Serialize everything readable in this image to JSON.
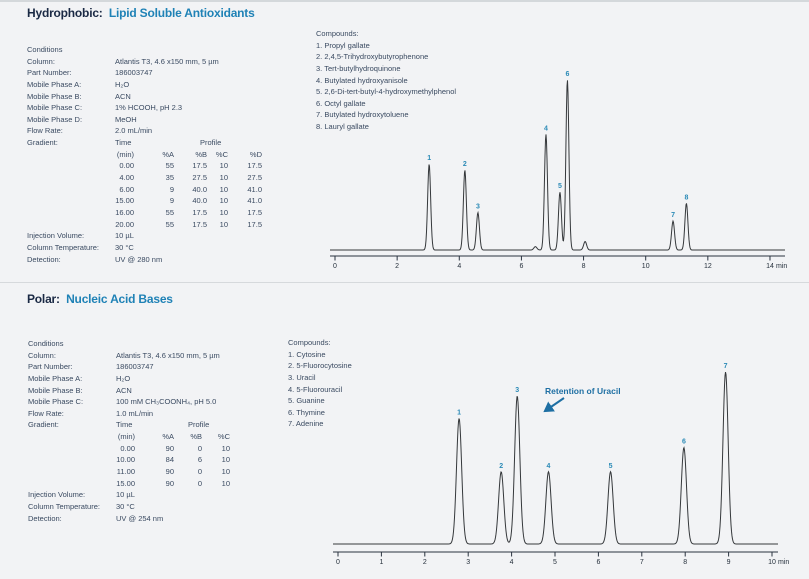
{
  "page": {
    "background": "#f2f3f5"
  },
  "colors": {
    "accent_blue": "#1f82b6",
    "title_dark": "#1a2944",
    "body_text": "#3a4a61",
    "peak_label_teal": "#2b8ab6",
    "annotation_blue": "#1e6fa3",
    "trace": "#35383b",
    "divider": "#d6d9dc"
  },
  "sections": [
    {
      "title_prefix": "Hydrophobic:",
      "title_accent": "Lipid Soluble Antioxidants",
      "conditions_label": "Conditions",
      "conditions": [
        [
          "Column:",
          "Atlantis T3, 4.6 x150 mm, 5 µm"
        ],
        [
          "Part Number:",
          "186003747"
        ],
        [
          "Mobile Phase A:",
          "H₂O"
        ],
        [
          "Mobile Phase B:",
          "ACN"
        ],
        [
          "Mobile Phase C:",
          "1% HCOOH, pH 2.3"
        ],
        [
          "Mobile Phase D:",
          "MeOH"
        ],
        [
          "Flow Rate:",
          "2.0 mL/min"
        ]
      ],
      "gradient_label": "Gradient:",
      "gradient": {
        "time_header": "Time",
        "profile_header": "Profile",
        "col_headers": [
          "(min)",
          "%A",
          "%B",
          "%C",
          "%D"
        ],
        "rows": [
          [
            "0.00",
            "55",
            "17.5",
            "10",
            "17.5"
          ],
          [
            "4.00",
            "35",
            "27.5",
            "10",
            "27.5"
          ],
          [
            "6.00",
            "9",
            "40.0",
            "10",
            "41.0"
          ],
          [
            "15.00",
            "9",
            "40.0",
            "10",
            "41.0"
          ],
          [
            "16.00",
            "55",
            "17.5",
            "10",
            "17.5"
          ],
          [
            "20.00",
            "55",
            "17.5",
            "10",
            "17.5"
          ]
        ]
      },
      "footer_conditions": [
        [
          "Injection Volume:",
          "10 µL"
        ],
        [
          "Column Temperature:",
          "30 °C"
        ],
        [
          "Detection:",
          "UV @ 280 nm"
        ]
      ],
      "compounds_label": "Compounds:",
      "compounds": [
        "1. Propyl gallate",
        "2. 2,4,5-Trihydroxybutyrophenone",
        "3. Tert-butylhydroquinone",
        "4. Butylated hydroxyanisole",
        "5. 2,6-Di-tert-butyl-4-hydroxymethylphenol",
        "6. Octyl gallate",
        "7. Butylated hydroxytoluene",
        "8. Lauryl gallate"
      ]
    },
    {
      "title_prefix": "Polar:",
      "title_accent": "Nucleic Acid Bases",
      "conditions_label": "Conditions",
      "conditions": [
        [
          "Column:",
          "Atlantis T3, 4.6 x150 mm, 5 µm"
        ],
        [
          "Part Number:",
          "186003747"
        ],
        [
          "Mobile Phase A:",
          "H₂O"
        ],
        [
          "Mobile Phase B:",
          "ACN"
        ],
        [
          "Mobile Phase C:",
          "100 mM CH₃COONH₄, pH 5.0"
        ],
        [
          "Flow Rate:",
          "1.0 mL/min"
        ]
      ],
      "gradient_label": "Gradient:",
      "gradient": {
        "time_header": "Time",
        "profile_header": "Profile",
        "col_headers": [
          "(min)",
          "%A",
          "%B",
          "%C"
        ],
        "rows": [
          [
            "0.00",
            "90",
            "0",
            "10"
          ],
          [
            "10.00",
            "84",
            "6",
            "10"
          ],
          [
            "11.00",
            "90",
            "0",
            "10"
          ],
          [
            "15.00",
            "90",
            "0",
            "10"
          ]
        ]
      },
      "footer_conditions": [
        [
          "Injection Volume:",
          "10 µL"
        ],
        [
          "Column Temperature:",
          "30 °C"
        ],
        [
          "Detection:",
          "UV @ 254 nm"
        ]
      ],
      "compounds_label": "Compounds:",
      "compounds": [
        "1. Cytosine",
        "2. 5-Fluorocytosine",
        "3. Uracil",
        "4. 5-Fluorouracil",
        "5. Guanine",
        "6. Thymine",
        "7. Adenine"
      ]
    }
  ],
  "chart_data": [
    {
      "type": "line",
      "kind": "chromatogram",
      "title": "Hydrophobic: Lipid Soluble Antioxidants",
      "xlabel": "min",
      "xlim": [
        0,
        14
      ],
      "x_ticks": [
        0,
        2,
        4,
        6,
        8,
        10,
        12,
        14
      ],
      "peaks": [
        {
          "label": "1",
          "rt": 3.03,
          "rel_height": 0.505
        },
        {
          "label": "2",
          "rt": 4.18,
          "rel_height": 0.47
        },
        {
          "label": "3",
          "rt": 4.6,
          "rel_height": 0.22
        },
        {
          "label": "4",
          "rt": 6.79,
          "rel_height": 0.68
        },
        {
          "label": "5",
          "rt": 7.24,
          "rel_height": 0.34
        },
        {
          "label": "6",
          "rt": 7.48,
          "rel_height": 1.0
        },
        {
          "label": "7",
          "rt": 10.88,
          "rel_height": 0.17
        },
        {
          "label": "8",
          "rt": 11.31,
          "rel_height": 0.275
        }
      ],
      "minor_peaks": [
        {
          "rt": 6.45,
          "rel_height": 0.02
        },
        {
          "rt": 8.05,
          "rel_height": 0.05
        }
      ]
    },
    {
      "type": "line",
      "kind": "chromatogram",
      "title": "Polar: Nucleic Acid Bases",
      "xlabel": "min",
      "xlim": [
        0,
        10
      ],
      "x_ticks": [
        0,
        1,
        2,
        3,
        4,
        5,
        6,
        7,
        8,
        9,
        10
      ],
      "peaks": [
        {
          "label": "1",
          "rt": 2.79,
          "rel_height": 0.73
        },
        {
          "label": "2",
          "rt": 3.76,
          "rel_height": 0.42
        },
        {
          "label": "3",
          "rt": 4.13,
          "rel_height": 0.86
        },
        {
          "label": "4",
          "rt": 4.85,
          "rel_height": 0.42
        },
        {
          "label": "5",
          "rt": 6.28,
          "rel_height": 0.42
        },
        {
          "label": "6",
          "rt": 7.97,
          "rel_height": 0.56
        },
        {
          "label": "7",
          "rt": 8.93,
          "rel_height": 1.0
        }
      ],
      "annotation": "Retention of Uracil"
    }
  ]
}
